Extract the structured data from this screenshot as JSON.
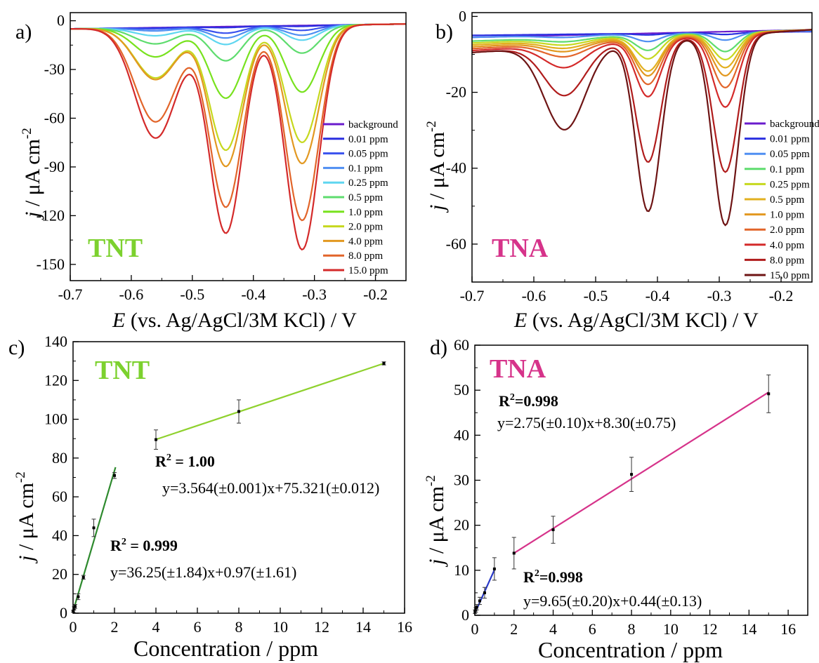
{
  "chart_data": [
    {
      "panel": "a)",
      "type": "line",
      "label": "TNT",
      "label_color": "#7cd12e",
      "xlim": [
        -0.7,
        -0.15
      ],
      "ylim": [
        -160,
        5
      ],
      "xticks": [
        -0.7,
        -0.6,
        -0.5,
        -0.4,
        -0.3,
        -0.2
      ],
      "xticklabels": [
        "-0.7",
        "-0.6",
        "-0.5",
        "-0.4",
        "-0.3",
        "-0.2"
      ],
      "yticks": [
        0,
        -30,
        -60,
        -90,
        -120,
        -150
      ],
      "yticklabels": [
        "0",
        "-30",
        "-60",
        "-90",
        "-120",
        "-150"
      ],
      "ylabel_italic": "j",
      "ylabel_rest": " / μA cm",
      "ylabel_sup": "-2",
      "xlabel_italic": "E",
      "xlabel_rest": " (vs. Ag/AgCl/3M KCl) / V",
      "legend_position": "right",
      "base_start": -5,
      "base_end": -2,
      "peak_centers": [
        -0.56,
        -0.445,
        -0.32
      ],
      "peak_widths": [
        0.034,
        0.027,
        0.027
      ],
      "series": [
        {
          "name": "background",
          "color": "#6a1bcc",
          "peaks": [
            0,
            0,
            0
          ]
        },
        {
          "name": "0.01 ppm",
          "color": "#2a2fe0",
          "peaks": [
            0.3,
            0.6,
            0.5
          ]
        },
        {
          "name": "0.05 ppm",
          "color": "#3a52ee",
          "peaks": [
            0.8,
            4,
            3
          ]
        },
        {
          "name": "0.1 ppm",
          "color": "#4f8ff2",
          "peaks": [
            2,
            7,
            6
          ]
        },
        {
          "name": "0.25 ppm",
          "color": "#5fd6f0",
          "peaks": [
            5,
            11,
            9
          ]
        },
        {
          "name": "0.5 ppm",
          "color": "#5edc6e",
          "peaks": [
            10,
            21,
            17
          ]
        },
        {
          "name": "1.0 ppm",
          "color": "#78e21e",
          "peaks": [
            18,
            44,
            41
          ]
        },
        {
          "name": "2.0 ppm",
          "color": "#c6d81e",
          "peaks": [
            31,
            76,
            72
          ]
        },
        {
          "name": "4.0 ppm",
          "color": "#e29820",
          "peaks": [
            32,
            86,
            85
          ]
        },
        {
          "name": "8.0 ppm",
          "color": "#e2652a",
          "peaks": [
            58,
            111,
            120
          ]
        },
        {
          "name": "15.0 ppm",
          "color": "#d42a2a",
          "peaks": [
            68,
            127,
            138
          ]
        }
      ]
    },
    {
      "panel": "b)",
      "type": "line",
      "label": "TNA",
      "label_color": "#d6338a",
      "xlim": [
        -0.7,
        -0.15
      ],
      "ylim": [
        -70,
        1
      ],
      "xticks": [
        -0.7,
        -0.6,
        -0.5,
        -0.4,
        -0.3,
        -0.2
      ],
      "xticklabels": [
        "-0.7",
        "-0.6",
        "-0.5",
        "-0.4",
        "-0.3",
        "-0.2"
      ],
      "yticks": [
        0,
        -20,
        -40,
        -60
      ],
      "yticklabels": [
        "0",
        "-20",
        "-40",
        "-60"
      ],
      "ylabel_italic": "j",
      "ylabel_rest": " / μA cm",
      "ylabel_sup": "-2",
      "xlabel_italic": "E",
      "xlabel_rest": " (vs. Ag/AgCl/3M KCl) / V",
      "legend_position": "right",
      "peak_centers": [
        -0.55,
        -0.415,
        -0.29
      ],
      "peak_widths": [
        0.033,
        0.02,
        0.02
      ],
      "series": [
        {
          "name": "background",
          "color": "#6a1bcc",
          "base": [
            -5.5,
            -3.5
          ],
          "peaks": [
            0,
            0,
            0
          ]
        },
        {
          "name": "0.01 ppm",
          "color": "#2a2fe0",
          "base": [
            -5.0,
            -4.0
          ],
          "peaks": [
            0,
            0.4,
            0.5
          ]
        },
        {
          "name": "0.05 ppm",
          "color": "#4f8ff2",
          "base": [
            -5.5,
            -3.8
          ],
          "peaks": [
            0.5,
            2,
            2
          ]
        },
        {
          "name": "0.1 ppm",
          "color": "#5edc6e",
          "base": [
            -6.5,
            -3.5
          ],
          "peaks": [
            1,
            4,
            5
          ]
        },
        {
          "name": "0.25 ppm",
          "color": "#c6d81e",
          "base": [
            -7.0,
            -3.5
          ],
          "peaks": [
            1.5,
            6,
            7
          ]
        },
        {
          "name": "0.5 ppm",
          "color": "#e2b020",
          "base": [
            -7.5,
            -3.5
          ],
          "peaks": [
            2,
            9,
            9
          ]
        },
        {
          "name": "1.0 ppm",
          "color": "#e29820",
          "base": [
            -8.0,
            -3.5
          ],
          "peaks": [
            2.5,
            10,
            11
          ]
        },
        {
          "name": "2.0 ppm",
          "color": "#e2652a",
          "base": [
            -8.5,
            -3.5
          ],
          "peaks": [
            3.5,
            12,
            14
          ]
        },
        {
          "name": "4.0 ppm",
          "color": "#d42a2a",
          "base": [
            -9.0,
            -3.5
          ],
          "peaks": [
            6,
            15,
            19
          ]
        },
        {
          "name": "8.0 ppm",
          "color": "#b01c1c",
          "base": [
            -9.5,
            -3.5
          ],
          "peaks": [
            13,
            32,
            36
          ]
        },
        {
          "name": "15.0 ppm",
          "color": "#6e1414",
          "base": [
            -9.5,
            -3.5
          ],
          "peaks": [
            22,
            45,
            50
          ]
        }
      ]
    },
    {
      "panel": "c)",
      "type": "scatter",
      "label": "TNT",
      "label_color": "#7cd12e",
      "xlim": [
        0,
        16
      ],
      "ylim": [
        0,
        140
      ],
      "xticks": [
        0,
        2,
        4,
        6,
        8,
        10,
        12,
        14,
        16
      ],
      "xticklabels": [
        "0",
        "2",
        "4",
        "6",
        "8",
        "10",
        "12",
        "14",
        "16"
      ],
      "yticks": [
        0,
        20,
        40,
        60,
        80,
        100,
        120,
        140
      ],
      "yticklabels": [
        "0",
        "20",
        "40",
        "60",
        "80",
        "100",
        "120",
        "140"
      ],
      "ylabel_italic": "j",
      "ylabel_rest": " / μA cm",
      "ylabel_sup": "-2",
      "xlabel": "Concentration / ppm",
      "points": [
        {
          "x": 0.01,
          "y": 1.0,
          "err": 0.5
        },
        {
          "x": 0.05,
          "y": 2.5,
          "err": 0.8
        },
        {
          "x": 0.1,
          "y": 3.5,
          "err": 1.0
        },
        {
          "x": 0.25,
          "y": 8.5,
          "err": 1.5
        },
        {
          "x": 0.5,
          "y": 18.5,
          "err": 1.0
        },
        {
          "x": 1.0,
          "y": 44,
          "err": 4.5
        },
        {
          "x": 2.0,
          "y": 71,
          "err": 1.5
        },
        {
          "x": 4.0,
          "y": 89.5,
          "err": 5
        },
        {
          "x": 8.0,
          "y": 104,
          "err": 6
        },
        {
          "x": 15.0,
          "y": 128.8,
          "err": 0.8
        }
      ],
      "fits": [
        {
          "x0": 0,
          "x1": 2.05,
          "slope": 36.25,
          "intercept": 0.97,
          "color": "#2e8a2e",
          "r2": "R",
          "r2_sup": "2",
          "r2_val": " = 0.999",
          "eq": "y=36.25(±1.84)x+0.97(±1.61)"
        },
        {
          "x0": 4,
          "x1": 15,
          "slope": 3.564,
          "intercept": 75.321,
          "color": "#8fd12e",
          "r2": "R",
          "r2_sup": "2",
          "r2_val": " = 1.00",
          "eq": "y=3.564(±0.001)x+75.321(±0.012)"
        }
      ]
    },
    {
      "panel": "d)",
      "type": "scatter",
      "label": "TNA",
      "label_color": "#d6338a",
      "xlim": [
        0,
        17
      ],
      "ylim": [
        0,
        60
      ],
      "xticks": [
        0,
        2,
        4,
        6,
        8,
        10,
        12,
        14,
        16
      ],
      "xticklabels": [
        "0",
        "2",
        "4",
        "6",
        "8",
        "10",
        "12",
        "14",
        "16"
      ],
      "yticks": [
        0,
        10,
        20,
        30,
        40,
        50,
        60
      ],
      "yticklabels": [
        "0",
        "10",
        "20",
        "30",
        "40",
        "50",
        "60"
      ],
      "ylabel_italic": "j",
      "ylabel_rest": " / μA cm",
      "ylabel_sup": "-2",
      "xlabel": "Concentration / ppm",
      "points": [
        {
          "x": 0.01,
          "y": 0.8,
          "err": 0.4
        },
        {
          "x": 0.05,
          "y": 1.2,
          "err": 0.5
        },
        {
          "x": 0.1,
          "y": 1.8,
          "err": 0.6
        },
        {
          "x": 0.25,
          "y": 3.2,
          "err": 0.8
        },
        {
          "x": 0.5,
          "y": 5.0,
          "err": 1.2
        },
        {
          "x": 1.0,
          "y": 10.3,
          "err": 2.5
        },
        {
          "x": 2.0,
          "y": 13.8,
          "err": 3.5
        },
        {
          "x": 4.0,
          "y": 19.0,
          "err": 3.0
        },
        {
          "x": 8.0,
          "y": 31.3,
          "err": 3.8
        },
        {
          "x": 15.0,
          "y": 49.2,
          "err": 4.2
        }
      ],
      "fits": [
        {
          "x0": 0,
          "x1": 1.02,
          "slope": 9.65,
          "intercept": 0.44,
          "color": "#2838c8",
          "r2": "R",
          "r2_sup": "2",
          "r2_val": "=0.998",
          "eq": "y=9.65(±0.20)x+0.44(±0.13)"
        },
        {
          "x0": 2,
          "x1": 15,
          "slope": 2.75,
          "intercept": 8.3,
          "color": "#d6338a",
          "r2": "R",
          "r2_sup": "2",
          "r2_val": "=0.998",
          "eq": "y=2.75(±0.10)x+8.30(±0.75)"
        }
      ]
    }
  ]
}
